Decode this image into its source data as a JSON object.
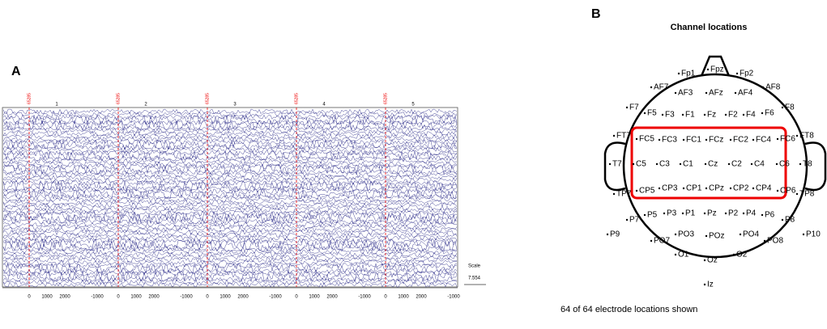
{
  "panel_a": {
    "label": "A",
    "markers": [
      "65285",
      "65285",
      "65285",
      "65285",
      "65285"
    ],
    "epochs": [
      "1",
      "2",
      "3",
      "4",
      "5"
    ],
    "ticks": [
      "0",
      "1000",
      "2000",
      "-1000",
      "0",
      "1000",
      "2000",
      "-1000",
      "0",
      "1000",
      "2000",
      "-1000",
      "0",
      "1000",
      "2000",
      "-1000",
      "0",
      "1000",
      "2000",
      "-1000"
    ],
    "scale_label": "Scale",
    "scale_value": "7.554"
  },
  "panel_b": {
    "label": "B",
    "title": "Channel locations",
    "electrodes": [
      "Fp1",
      "Fpz",
      "Fp2",
      "AF7",
      "AF3",
      "AFz",
      "AF4",
      "AF8",
      "F7",
      "F5",
      "F3",
      "F1",
      "Fz",
      "F2",
      "F4",
      "F6",
      "F8",
      "FT7",
      "FC5",
      "FC3",
      "FC1",
      "FCz",
      "FC2",
      "FC4",
      "FC6",
      "FT8",
      "T7",
      "C5",
      "C3",
      "C1",
      "Cz",
      "C2",
      "C4",
      "C6",
      "T8",
      "TP7",
      "CP5",
      "CP3",
      "CP1",
      "CPz",
      "CP2",
      "CP4",
      "CP6",
      "TP8",
      "P7",
      "P5",
      "P3",
      "P1",
      "Pz",
      "P2",
      "P4",
      "P6",
      "P8",
      "P9",
      "P10",
      "PO7",
      "PO3",
      "POz",
      "PO4",
      "PO8",
      "O1",
      "Oz",
      "O2",
      "Iz"
    ],
    "footer": "64 of 64 electrode locations shown"
  }
}
